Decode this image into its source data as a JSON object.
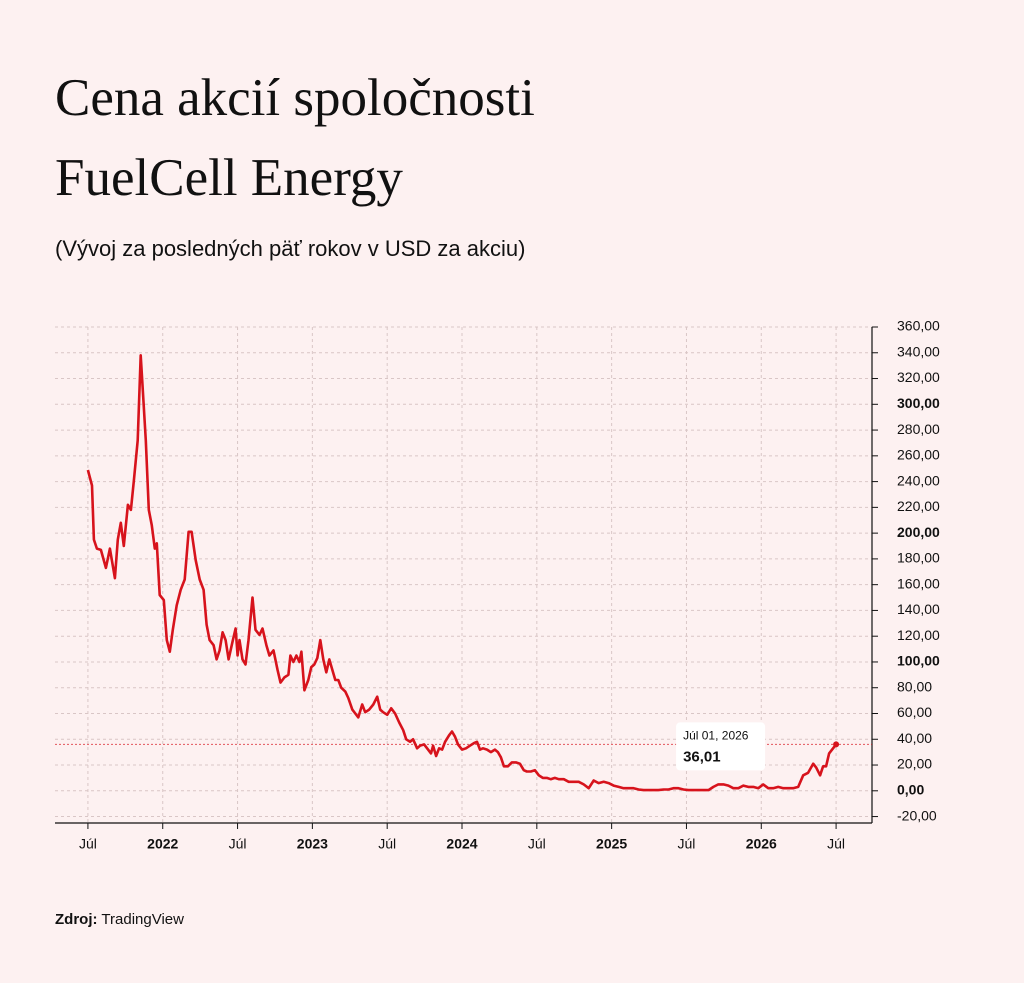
{
  "chart_data": {
    "type": "line",
    "title": "Cena akcií spoločnosti FuelCell Energy",
    "subtitle": "(Vývoj za posledných päť rokov v USD za akciu)",
    "source_label": "Zdroj:",
    "source": "TradingView",
    "color": "#d7131c",
    "grid": true,
    "x": [
      2021.5,
      2021.527,
      2021.54,
      2021.56,
      2021.587,
      2021.62,
      2021.647,
      2021.68,
      2021.7,
      2021.72,
      2021.74,
      2021.767,
      2021.787,
      2021.807,
      2021.833,
      2021.853,
      2021.867,
      2021.887,
      2021.907,
      2021.927,
      2021.947,
      2021.96,
      2021.98,
      2022.007,
      2022.027,
      2022.047,
      2022.067,
      2022.093,
      2022.12,
      2022.147,
      2022.173,
      2022.193,
      2022.22,
      2022.247,
      2022.273,
      2022.293,
      2022.313,
      2022.34,
      2022.36,
      2022.38,
      2022.4,
      2022.42,
      2022.44,
      2022.467,
      2022.487,
      2022.5,
      2022.513,
      2022.533,
      2022.553,
      2022.573,
      2022.6,
      2022.62,
      2022.647,
      2022.667,
      2022.693,
      2022.713,
      2022.74,
      2022.767,
      2022.787,
      2022.813,
      2022.84,
      2022.853,
      2022.873,
      2022.893,
      2022.913,
      2022.927,
      2022.947,
      2022.973,
      2022.993,
      2023.013,
      2023.033,
      2023.053,
      2023.073,
      2023.093,
      2023.113,
      2023.133,
      2023.153,
      2023.173,
      2023.193,
      2023.22,
      2023.24,
      2023.267,
      2023.287,
      2023.307,
      2023.333,
      2023.353,
      2023.38,
      2023.407,
      2023.433,
      2023.453,
      2023.473,
      2023.5,
      2023.527,
      2023.553,
      2023.58,
      2023.607,
      2023.627,
      2023.653,
      2023.673,
      2023.7,
      2023.72,
      2023.747,
      2023.767,
      2023.793,
      2023.807,
      2023.827,
      2023.847,
      2023.867,
      2023.887,
      2023.913,
      2023.933,
      2023.953,
      2023.973,
      2024,
      2024.027,
      2024.053,
      2024.08,
      2024.1,
      2024.12,
      2024.14,
      2024.167,
      2024.193,
      2024.22,
      2024.24,
      2024.26,
      2024.28,
      2024.307,
      2024.333,
      2024.36,
      2024.387,
      2024.413,
      2024.433,
      2024.46,
      2024.487,
      2024.513,
      2024.54,
      2024.567,
      2024.593,
      2024.62,
      2024.647,
      2024.68,
      2024.713,
      2024.747,
      2024.78,
      2024.813,
      2024.847,
      2024.88,
      2024.913,
      2024.947,
      2024.98,
      2025.013,
      2025.047,
      2025.08,
      2025.113,
      2025.147,
      2025.18,
      2025.213,
      2025.247,
      2025.28,
      2025.313,
      2025.347,
      2025.38,
      2025.413,
      2025.447,
      2025.48,
      2025.513,
      2025.547,
      2025.58,
      2025.613,
      2025.647,
      2025.68,
      2025.713,
      2025.747,
      2025.78,
      2025.813,
      2025.847,
      2025.88,
      2025.913,
      2025.947,
      2025.98,
      2026.013,
      2026.047,
      2026.08,
      2026.113,
      2026.147,
      2026.18,
      2026.213,
      2026.247,
      2026.28,
      2026.313,
      2026.347,
      2026.367,
      2026.393,
      2026.413,
      2026.433,
      2026.453,
      2026.5
    ],
    "values": [
      249,
      237,
      195,
      188,
      187,
      173,
      188,
      165,
      195,
      208,
      190,
      222,
      218,
      241,
      272,
      338,
      311,
      272,
      218,
      206,
      188,
      192,
      152,
      148,
      117,
      108,
      125,
      144,
      156,
      164,
      201,
      201,
      179,
      164,
      156,
      129,
      117,
      113,
      102,
      109,
      123,
      117,
      102,
      116,
      126,
      105,
      117,
      102,
      98,
      117,
      150,
      125,
      121,
      126,
      113,
      105,
      109,
      94,
      84,
      88,
      90,
      105,
      100,
      105,
      100,
      108,
      78,
      86,
      96,
      98,
      103,
      117,
      102,
      92,
      102,
      94,
      86,
      86,
      80,
      77,
      72,
      63,
      60,
      57,
      67,
      61,
      63,
      67,
      73,
      63,
      61,
      59,
      64,
      60,
      53,
      47,
      40,
      38,
      40,
      33,
      35,
      36,
      33,
      29,
      35,
      27,
      33,
      32,
      38,
      43,
      46,
      42,
      36,
      32,
      33,
      35,
      37,
      38,
      32,
      33,
      32,
      30,
      32,
      30,
      26,
      19,
      19,
      22,
      22,
      21,
      16,
      15,
      15,
      16,
      12,
      10,
      10,
      9,
      10,
      9,
      9,
      7,
      7,
      7,
      5,
      2,
      8,
      6,
      7,
      6,
      4,
      3,
      2,
      2,
      2,
      1,
      0.5,
      0.5,
      0.5,
      0.5,
      1,
      1,
      2,
      2,
      1,
      0.5,
      0.5,
      0.5,
      0.5,
      0.5,
      3,
      5,
      5,
      4,
      2,
      2,
      4,
      3,
      3,
      2,
      5,
      2,
      2,
      3,
      2,
      2,
      2,
      3,
      12,
      14,
      21,
      18,
      12,
      19,
      19,
      29,
      36.01
    ],
    "xlim": [
      2021.28,
      2026.74
    ],
    "xticks": [
      {
        "value": 2021.5,
        "label": "Júl"
      },
      2022,
      {
        "value": 2022.5,
        "label": "Júl"
      },
      2023,
      {
        "value": 2023.5,
        "label": "Júl"
      },
      2024,
      {
        "value": 2024.5,
        "label": "Júl"
      },
      2025,
      {
        "value": 2025.5,
        "label": "Júl"
      },
      2026,
      {
        "value": 2026.5,
        "label": "Júl"
      }
    ],
    "ylim": [
      -25,
      360
    ],
    "yticks": [
      {
        "value": 360,
        "label": "360,00"
      },
      {
        "value": 340,
        "label": "340,00"
      },
      {
        "value": 320,
        "label": "320,00"
      },
      {
        "value": 300,
        "label": "300,00"
      },
      {
        "value": 280,
        "label": "280,00"
      },
      {
        "value": 260,
        "label": "260,00"
      },
      {
        "value": 240,
        "label": "240,00"
      },
      {
        "value": 220,
        "label": "220,00"
      },
      {
        "value": 200,
        "label": "200,00"
      },
      {
        "value": 180,
        "label": "180,00"
      },
      {
        "value": 160,
        "label": "160,00"
      },
      {
        "value": 140,
        "label": "140,00"
      },
      {
        "value": 120,
        "label": "120,00"
      },
      {
        "value": 100,
        "label": "100,00"
      },
      {
        "value": 80,
        "label": "80,00"
      },
      {
        "value": 60,
        "label": "60,00"
      },
      {
        "value": 40,
        "label": "40,00"
      },
      {
        "value": 20,
        "label": "20,00"
      },
      {
        "value": 0,
        "label": "0,00"
      },
      {
        "value": -20,
        "label": "-20,00"
      }
    ],
    "annotation": {
      "label": "Júl 01, 2026",
      "text": "36,01",
      "value": 36.01
    }
  }
}
